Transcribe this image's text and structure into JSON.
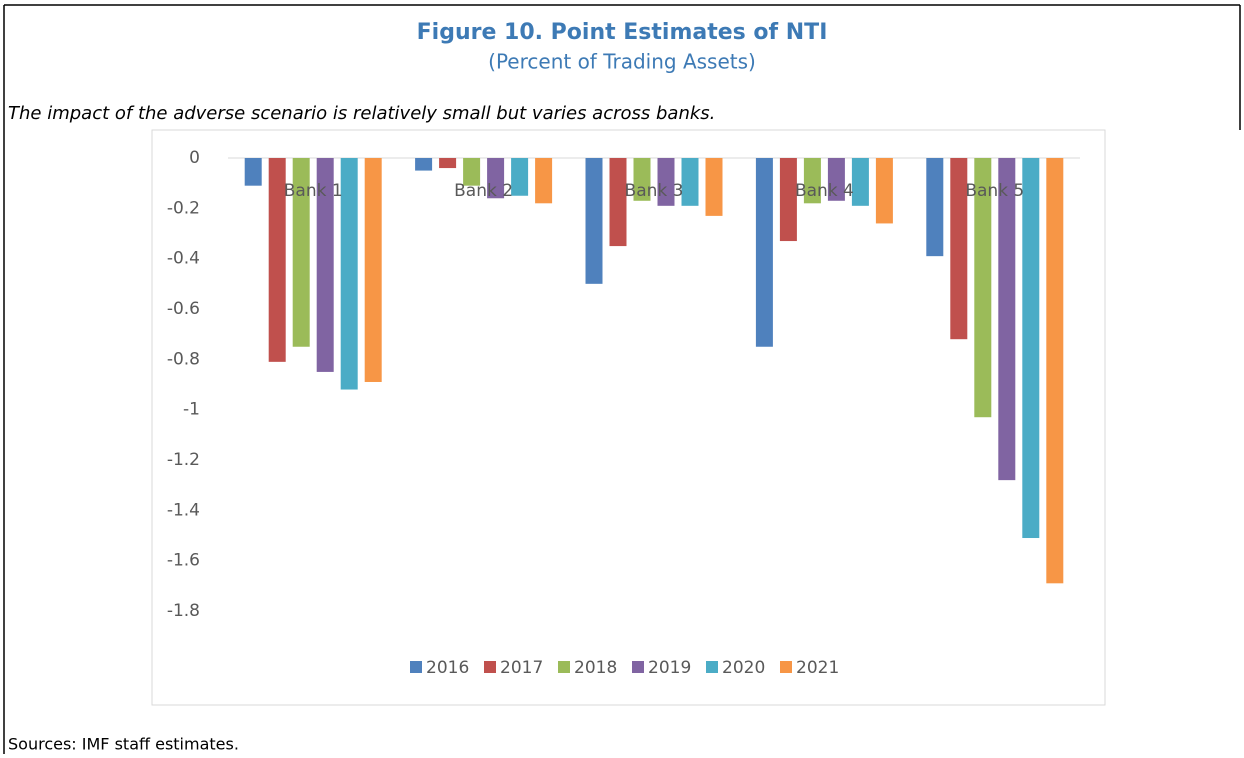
{
  "chart_data": {
    "type": "bar",
    "title": "Figure 10. Point Estimates of NTI",
    "subtitle": "(Percent of Trading Assets)",
    "annotation": "The impact of the adverse scenario is relatively small but varies across banks.",
    "source": "Sources: IMF staff estimates.",
    "categories": [
      "Bank 1",
      "Bank 2",
      "Bank 3",
      "Bank 4",
      "Bank 5"
    ],
    "series": [
      {
        "name": "2016",
        "color": "#4f81bd",
        "values": [
          -0.11,
          -0.05,
          -0.5,
          -0.75,
          -0.39
        ]
      },
      {
        "name": "2017",
        "color": "#c0504d",
        "values": [
          -0.81,
          -0.04,
          -0.35,
          -0.33,
          -0.72
        ]
      },
      {
        "name": "2018",
        "color": "#9bbb59",
        "values": [
          -0.75,
          -0.11,
          -0.17,
          -0.18,
          -1.03
        ]
      },
      {
        "name": "2019",
        "color": "#8064a2",
        "values": [
          -0.85,
          -0.16,
          -0.19,
          -0.17,
          -1.28
        ]
      },
      {
        "name": "2020",
        "color": "#4bacc6",
        "values": [
          -0.92,
          -0.15,
          -0.19,
          -0.19,
          -1.51
        ]
      },
      {
        "name": "2021",
        "color": "#f79646",
        "values": [
          -0.89,
          -0.18,
          -0.23,
          -0.26,
          -1.69
        ]
      }
    ],
    "ylim": [
      -1.8,
      0
    ],
    "yticks": [
      0,
      -0.2,
      -0.4,
      -0.6,
      -0.8,
      -1,
      -1.2,
      -1.4,
      -1.6,
      -1.8
    ],
    "legend": "bottom"
  }
}
